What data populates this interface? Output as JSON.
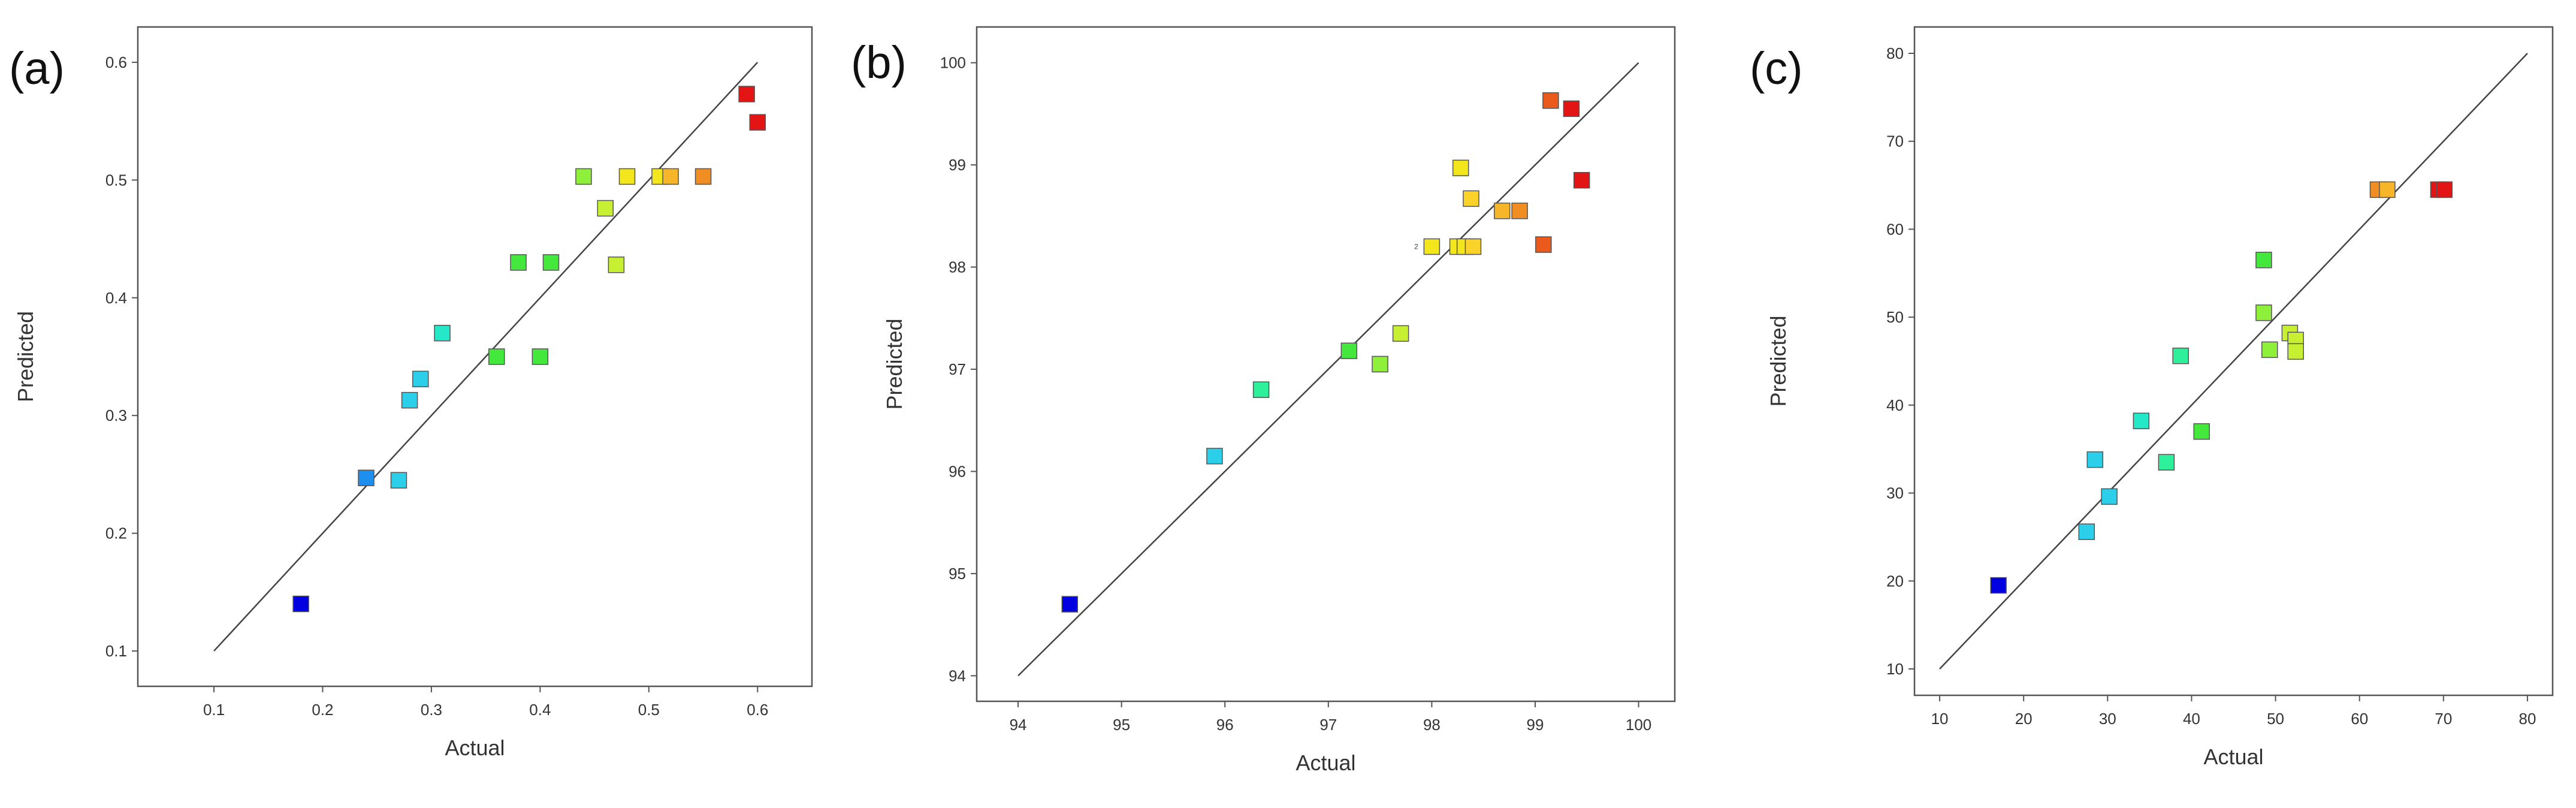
{
  "colors": {
    "blue": "#0000e0",
    "azure": "#1f8fef",
    "cyan": "#2bcfea",
    "aqua": "#24e8c8",
    "mint": "#2ef09a",
    "green": "#44e83c",
    "lime": "#8ef03a",
    "yellowgreen": "#c8f032",
    "yellow": "#f4e61c",
    "gold": "#fad22a",
    "amber": "#f7b52a",
    "orange": "#f08e24",
    "darkorange": "#ea5a1c",
    "red": "#e21414"
  },
  "chart_data": [
    {
      "type": "scatter",
      "panel_label": "(a)",
      "title": "",
      "xlabel": "Actual",
      "ylabel": "Predicted",
      "xlim": [
        0.03,
        0.65
      ],
      "ylim": [
        0.07,
        0.63
      ],
      "xticks": [
        0.1,
        0.2,
        0.3,
        0.4,
        0.5,
        0.6
      ],
      "yticks": [
        0.1,
        0.2,
        0.3,
        0.4,
        0.5,
        0.6
      ],
      "xtick_labels": [
        "0.1",
        "0.2",
        "0.3",
        "0.4",
        "0.5",
        "0.6"
      ],
      "ytick_labels": [
        "0.1",
        "0.2",
        "0.3",
        "0.4",
        "0.5",
        "0.6"
      ],
      "reference_line": [
        [
          0.1,
          0.1
        ],
        [
          0.6,
          0.6
        ]
      ],
      "points": [
        {
          "x": 0.18,
          "y": 0.14,
          "color": "blue"
        },
        {
          "x": 0.24,
          "y": 0.247,
          "color": "azure"
        },
        {
          "x": 0.27,
          "y": 0.245,
          "color": "cyan"
        },
        {
          "x": 0.28,
          "y": 0.313,
          "color": "cyan"
        },
        {
          "x": 0.29,
          "y": 0.331,
          "color": "cyan"
        },
        {
          "x": 0.31,
          "y": 0.37,
          "color": "aqua"
        },
        {
          "x": 0.36,
          "y": 0.35,
          "color": "green"
        },
        {
          "x": 0.38,
          "y": 0.43,
          "color": "green"
        },
        {
          "x": 0.4,
          "y": 0.35,
          "color": "green"
        },
        {
          "x": 0.41,
          "y": 0.43,
          "color": "green"
        },
        {
          "x": 0.44,
          "y": 0.503,
          "color": "lime"
        },
        {
          "x": 0.46,
          "y": 0.476,
          "color": "yellowgreen"
        },
        {
          "x": 0.47,
          "y": 0.428,
          "color": "yellowgreen"
        },
        {
          "x": 0.48,
          "y": 0.503,
          "color": "yellow"
        },
        {
          "x": 0.51,
          "y": 0.503,
          "color": "yellow"
        },
        {
          "x": 0.52,
          "y": 0.503,
          "color": "amber"
        },
        {
          "x": 0.55,
          "y": 0.503,
          "color": "orange"
        },
        {
          "x": 0.59,
          "y": 0.573,
          "color": "red"
        },
        {
          "x": 0.6,
          "y": 0.549,
          "color": "red"
        }
      ]
    },
    {
      "type": "scatter",
      "panel_label": "(b)",
      "title": "",
      "xlabel": "Actual",
      "ylabel": "Predicted",
      "xlim": [
        93.6,
        100.35
      ],
      "ylim": [
        93.75,
        100.35
      ],
      "xticks": [
        94,
        95,
        96,
        97,
        98,
        99,
        100
      ],
      "yticks": [
        94,
        95,
        96,
        97,
        98,
        99,
        100
      ],
      "xtick_labels": [
        "94",
        "95",
        "96",
        "97",
        "98",
        "99",
        "100"
      ],
      "ytick_labels": [
        "94",
        "95",
        "96",
        "97",
        "98",
        "99",
        "100"
      ],
      "reference_line": [
        [
          94,
          94
        ],
        [
          100,
          100
        ]
      ],
      "points": [
        {
          "x": 94.5,
          "y": 94.7,
          "color": "blue"
        },
        {
          "x": 95.9,
          "y": 96.15,
          "color": "cyan"
        },
        {
          "x": 96.35,
          "y": 96.8,
          "color": "mint"
        },
        {
          "x": 97.2,
          "y": 97.18,
          "color": "green"
        },
        {
          "x": 97.5,
          "y": 97.05,
          "color": "lime"
        },
        {
          "x": 97.7,
          "y": 97.35,
          "color": "yellowgreen"
        },
        {
          "x": 98.0,
          "y": 98.2,
          "color": "yellow"
        },
        {
          "x": 98.25,
          "y": 98.2,
          "color": "yellow"
        },
        {
          "x": 98.32,
          "y": 98.2,
          "color": "yellow"
        },
        {
          "x": 98.4,
          "y": 98.2,
          "color": "gold"
        },
        {
          "x": 98.28,
          "y": 98.97,
          "color": "yellow"
        },
        {
          "x": 98.38,
          "y": 98.67,
          "color": "gold"
        },
        {
          "x": 98.68,
          "y": 98.55,
          "color": "amber"
        },
        {
          "x": 98.85,
          "y": 98.55,
          "color": "orange"
        },
        {
          "x": 99.08,
          "y": 98.22,
          "color": "darkorange"
        },
        {
          "x": 99.15,
          "y": 99.63,
          "color": "darkorange"
        },
        {
          "x": 99.35,
          "y": 99.55,
          "color": "red"
        },
        {
          "x": 99.45,
          "y": 98.85,
          "color": "red"
        }
      ],
      "annotations": [
        {
          "x": 97.85,
          "y": 98.2,
          "text": "2"
        }
      ]
    },
    {
      "type": "scatter",
      "panel_label": "(c)",
      "title": "",
      "xlabel": "Actual",
      "ylabel": "Predicted",
      "xlim": [
        7,
        83
      ],
      "ylim": [
        7,
        83
      ],
      "xticks": [
        10,
        20,
        30,
        40,
        50,
        60,
        70,
        80
      ],
      "yticks": [
        10,
        20,
        30,
        40,
        50,
        60,
        70,
        80
      ],
      "xtick_labels": [
        "10",
        "20",
        "30",
        "40",
        "50",
        "60",
        "70",
        "80"
      ],
      "ytick_labels": [
        "10",
        "20",
        "30",
        "40",
        "50",
        "60",
        "70",
        "80"
      ],
      "reference_line": [
        [
          10,
          10
        ],
        [
          80,
          80
        ]
      ],
      "points": [
        {
          "x": 17,
          "y": 19.5,
          "color": "blue"
        },
        {
          "x": 27.5,
          "y": 25.6,
          "color": "cyan"
        },
        {
          "x": 28.5,
          "y": 33.8,
          "color": "cyan"
        },
        {
          "x": 30.2,
          "y": 29.6,
          "color": "cyan"
        },
        {
          "x": 34,
          "y": 38.2,
          "color": "aqua"
        },
        {
          "x": 37,
          "y": 33.5,
          "color": "mint"
        },
        {
          "x": 38.7,
          "y": 45.6,
          "color": "mint"
        },
        {
          "x": 41.2,
          "y": 37,
          "color": "green"
        },
        {
          "x": 48.6,
          "y": 56.5,
          "color": "green"
        },
        {
          "x": 48.6,
          "y": 50.5,
          "color": "lime"
        },
        {
          "x": 49.3,
          "y": 46.3,
          "color": "lime"
        },
        {
          "x": 51.7,
          "y": 48.2,
          "color": "yellowgreen"
        },
        {
          "x": 52.4,
          "y": 47.4,
          "color": "yellowgreen"
        },
        {
          "x": 52.4,
          "y": 46.1,
          "color": "yellowgreen"
        },
        {
          "x": 62.2,
          "y": 64.5,
          "color": "orange"
        },
        {
          "x": 63.3,
          "y": 64.5,
          "color": "amber"
        },
        {
          "x": 69.4,
          "y": 64.5,
          "color": "red"
        },
        {
          "x": 70.1,
          "y": 64.5,
          "color": "red"
        }
      ]
    }
  ]
}
